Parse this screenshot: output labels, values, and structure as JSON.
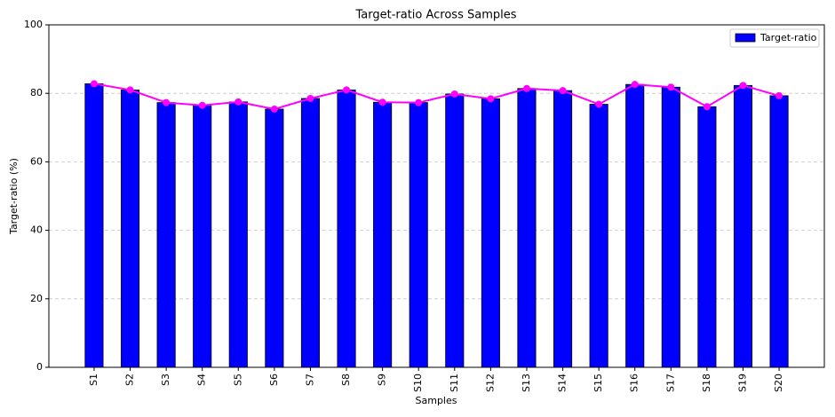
{
  "chart_data": {
    "type": "bar",
    "title": "Target-ratio Across Samples",
    "x_label": "Samples",
    "y_label": "Target-ratio (%)",
    "categories": [
      "S1",
      "S2",
      "S3",
      "S4",
      "S5",
      "S6",
      "S7",
      "S8",
      "S9",
      "S10",
      "S11",
      "S12",
      "S13",
      "S14",
      "S15",
      "S16",
      "S17",
      "S18",
      "S19",
      "S20"
    ],
    "series": [
      {
        "name": "Target-ratio",
        "color": "#0000ff",
        "values": [
          82.8,
          81.0,
          77.3,
          76.5,
          77.5,
          75.4,
          78.5,
          81.0,
          77.4,
          77.3,
          79.8,
          78.4,
          81.4,
          80.8,
          76.8,
          82.6,
          81.8,
          76.1,
          82.3,
          79.3
        ]
      }
    ],
    "line_color": "#ff00ff",
    "ylim": [
      0,
      100
    ],
    "yticks": [
      0,
      20,
      40,
      60,
      80,
      100
    ],
    "grid": true,
    "legend": "upper right"
  }
}
